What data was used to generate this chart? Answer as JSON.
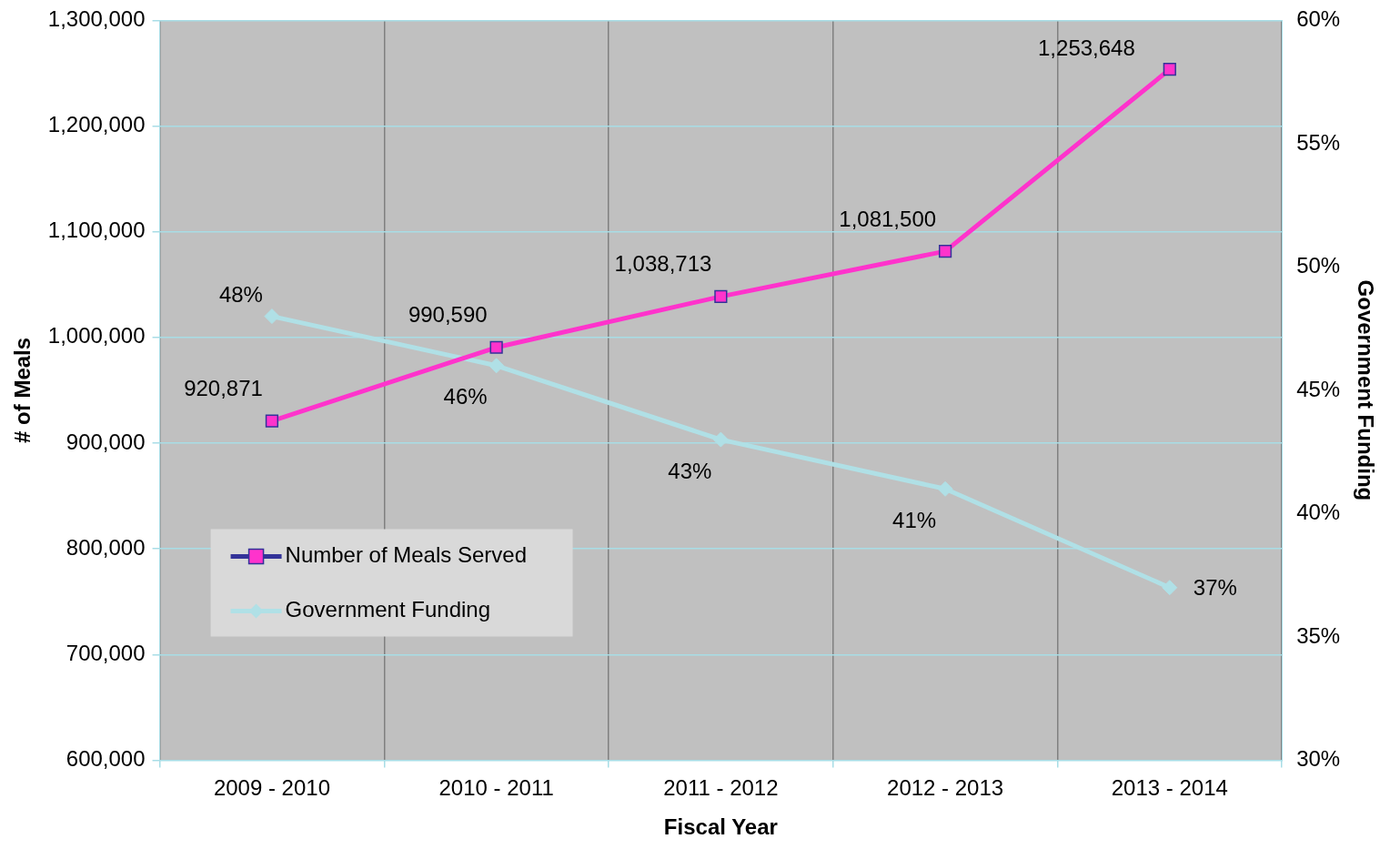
{
  "chart_data": {
    "type": "line",
    "xlabel": "Fiscal Year",
    "ylabel": "# of Meals",
    "y2label": "Government Funding",
    "categories": [
      "2009 - 2010",
      "2010 - 2011",
      "2011 - 2012",
      "2012 - 2013",
      "2013 - 2014"
    ],
    "series": [
      {
        "name": "Number of Meals Served",
        "color": "#ff33cc",
        "values": [
          920871,
          990590,
          1038713,
          1081500,
          1253648
        ],
        "marker": "square",
        "value_labels": [
          "920,871",
          "990,590",
          "1,038,713",
          "1,081,500",
          "1,253,648"
        ]
      },
      {
        "name": "Government Funding",
        "color": "#b0e0e6",
        "axis": "y2",
        "values": [
          48,
          46,
          43,
          41,
          37
        ],
        "marker": "diamond",
        "value_labels": [
          "48%",
          "46%",
          "43%",
          "41%",
          "37%"
        ]
      }
    ],
    "ylim": [
      600000,
      1300000
    ],
    "yticks": [
      {
        "value": 600000,
        "label": "600,000"
      },
      {
        "value": 700000,
        "label": "700,000"
      },
      {
        "value": 800000,
        "label": "800,000"
      },
      {
        "value": 900000,
        "label": "900,000"
      },
      {
        "value": 1000000,
        "label": "1,000,000"
      },
      {
        "value": 1100000,
        "label": "1,100,000"
      },
      {
        "value": 1200000,
        "label": "1,200,000"
      },
      {
        "value": 1300000,
        "label": "1,300,000"
      }
    ],
    "y2lim": [
      30,
      60
    ],
    "y2ticks": [
      {
        "value": 30,
        "label": "30%"
      },
      {
        "value": 35,
        "label": "35%"
      },
      {
        "value": 40,
        "label": "40%"
      },
      {
        "value": 45,
        "label": "45%"
      },
      {
        "value": 50,
        "label": "50%"
      },
      {
        "value": 55,
        "label": "55%"
      },
      {
        "value": 60,
        "label": "60%"
      }
    ],
    "grid": true,
    "legend": "bottom left",
    "line_style": "solid"
  }
}
